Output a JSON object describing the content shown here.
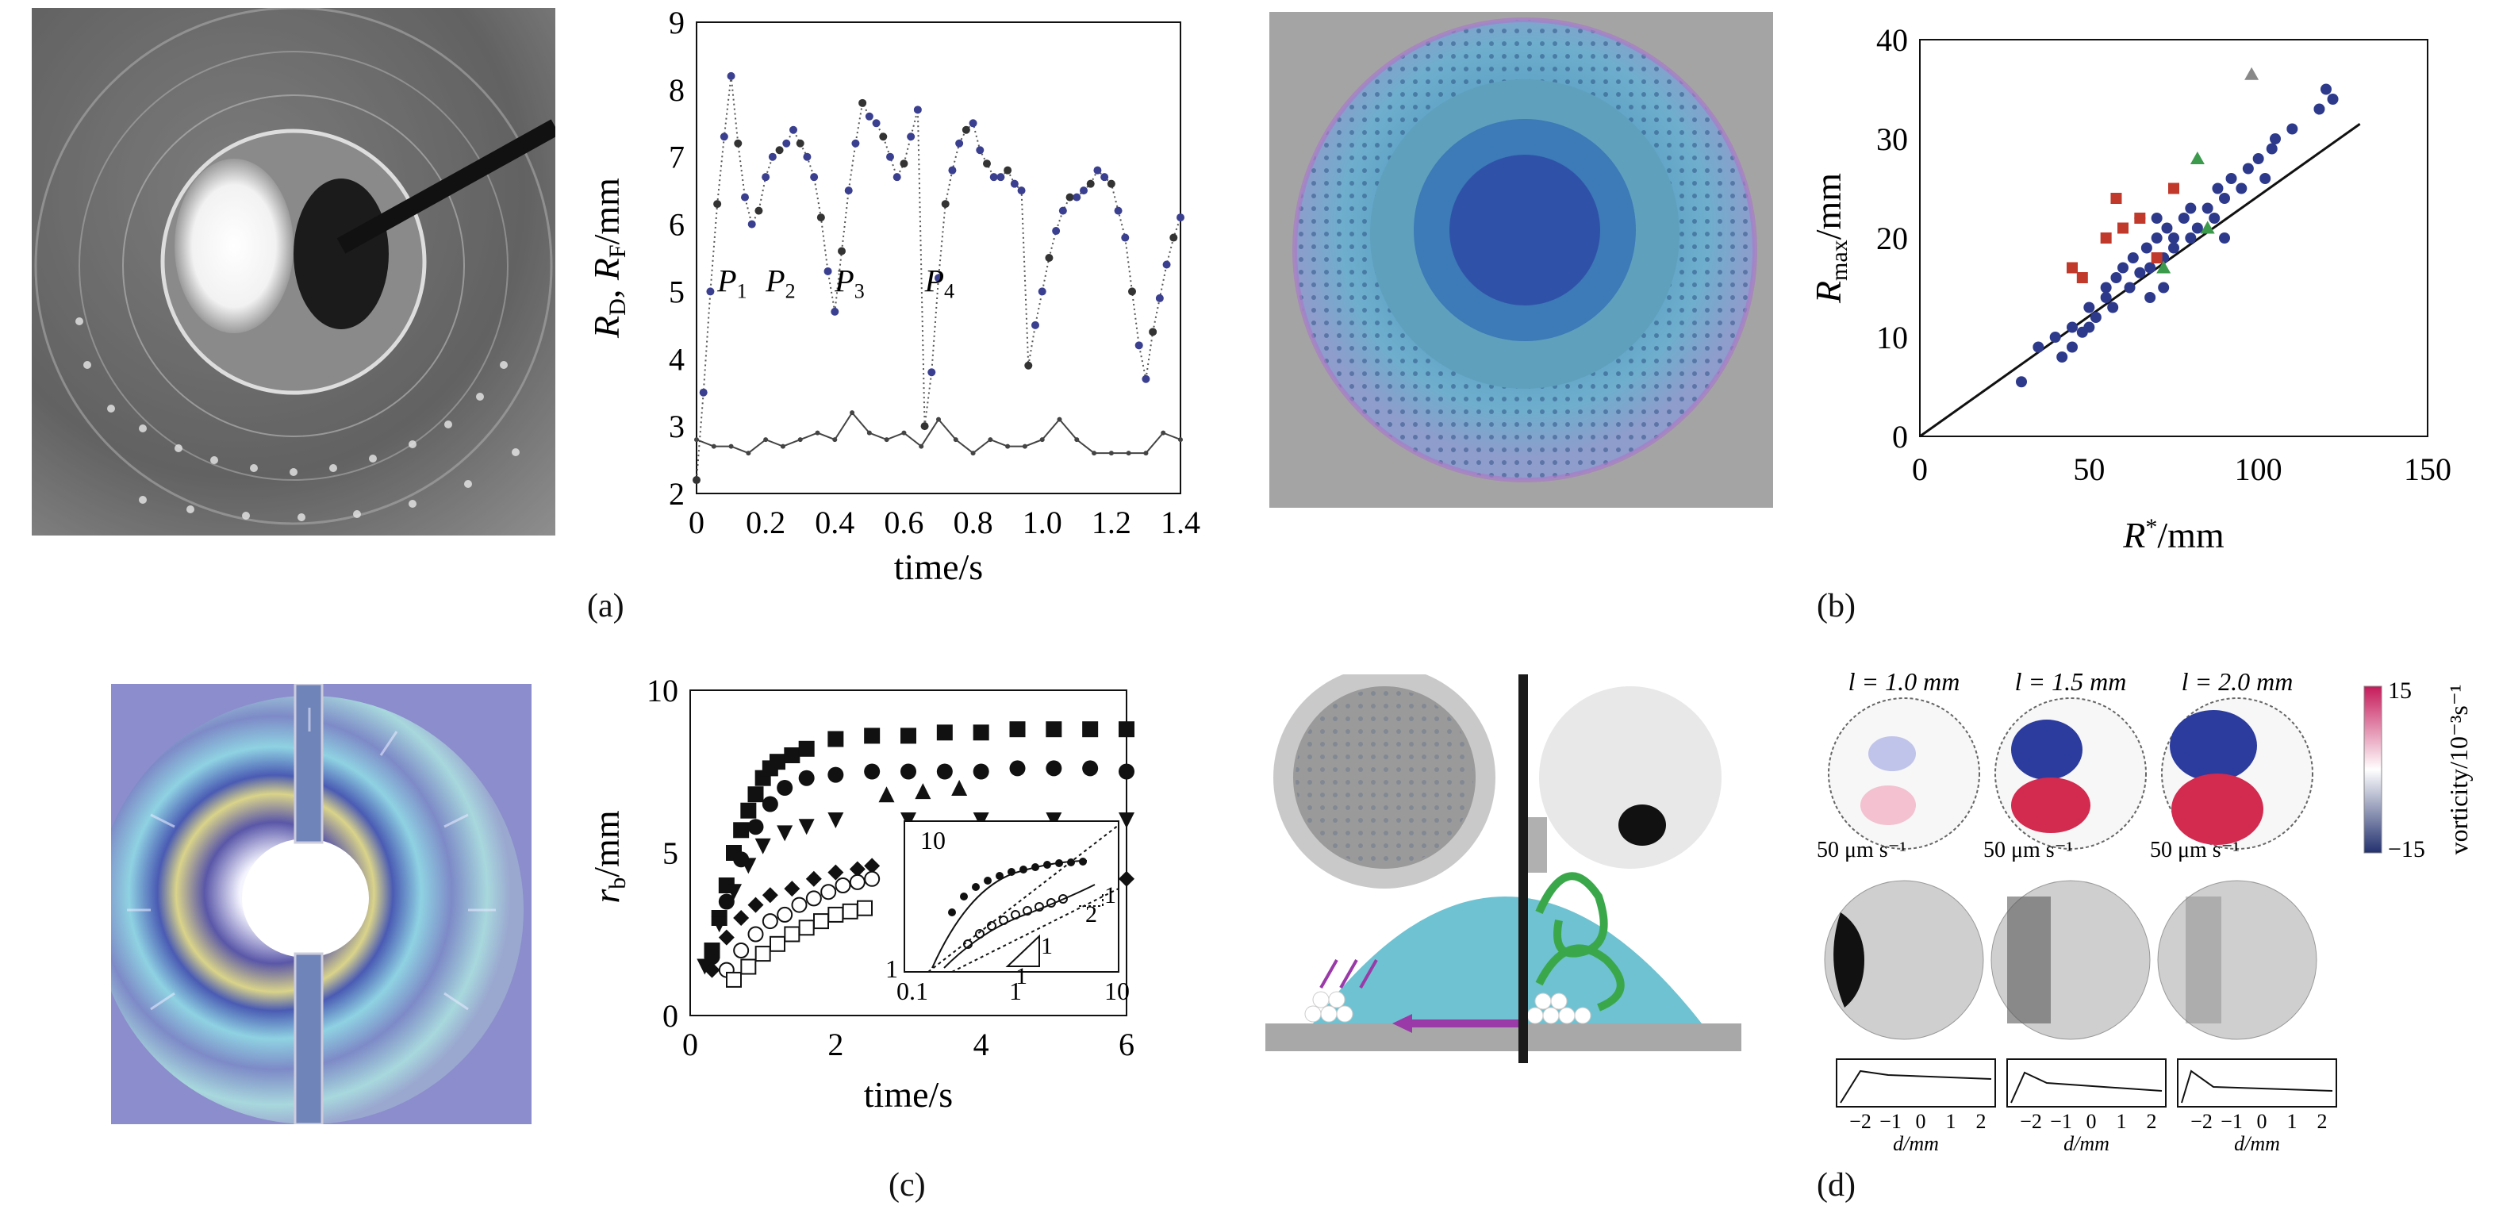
{
  "panel_labels": [
    "(a)",
    "(b)",
    "(c)",
    "(d)"
  ],
  "panel_a": {
    "ylabel": "R_D, R_F/mm",
    "xlabel": "time/s",
    "x_ticks": [
      "0",
      "0.2",
      "0.4",
      "0.6",
      "0.8",
      "1.0",
      "1.2",
      "1.4"
    ],
    "y_ticks": [
      "2",
      "3",
      "4",
      "5",
      "6",
      "7",
      "8",
      "9"
    ],
    "peak_labels": [
      {
        "main": "P",
        "sub": "1"
      },
      {
        "main": "P",
        "sub": "2"
      },
      {
        "main": "P",
        "sub": "3"
      },
      {
        "main": "P",
        "sub": "4"
      }
    ]
  },
  "panel_b": {
    "ylabel": "R_max/mm",
    "xlabel": "R*/mm",
    "x_ticks": [
      "0",
      "50",
      "100",
      "150"
    ],
    "y_ticks": [
      "0",
      "10",
      "20",
      "30",
      "40"
    ]
  },
  "panel_c": {
    "ylabel": "r_b/mm",
    "xlabel": "time/s",
    "x_ticks": [
      "0",
      "2",
      "4",
      "6"
    ],
    "y_ticks": [
      "0",
      "5",
      "10"
    ],
    "inset_x_ticks": [
      "0.1",
      "1",
      "10"
    ],
    "inset_y_ticks": [
      "1",
      "10"
    ],
    "slope_labels": [
      "1",
      "1",
      "1",
      "2"
    ]
  },
  "panel_d": {
    "lengths": [
      "l = 1.0 mm",
      "l = 1.5 mm",
      "l = 2.0 mm"
    ],
    "scale_text": "50 μm s⁻¹",
    "colorbar_top": "15",
    "colorbar_bottom": "−15",
    "colorbar_label": "vorticity/10⁻³s⁻¹",
    "profile_ticks": [
      "−2",
      "−1",
      "0",
      "1",
      "2"
    ],
    "profile_xlabel": "d/mm"
  },
  "chart_data": [
    {
      "type": "scatter",
      "title": "",
      "xlabel": "time/s",
      "ylabel": "R_D, R_F/mm",
      "xlim": [
        0,
        1.4
      ],
      "ylim": [
        2,
        9
      ],
      "series": [
        {
          "values": [
            [
              0.0,
              2.2
            ],
            [
              0.02,
              3.5
            ],
            [
              0.04,
              5.0
            ],
            [
              0.06,
              6.3
            ],
            [
              0.08,
              7.3
            ],
            [
              0.1,
              8.2
            ],
            [
              0.12,
              7.2
            ],
            [
              0.14,
              6.4
            ],
            [
              0.16,
              6.0
            ],
            [
              0.18,
              6.2
            ],
            [
              0.2,
              6.7
            ],
            [
              0.22,
              7.0
            ],
            [
              0.24,
              7.1
            ],
            [
              0.26,
              7.2
            ],
            [
              0.28,
              7.4
            ],
            [
              0.3,
              7.2
            ],
            [
              0.32,
              7.0
            ],
            [
              0.34,
              6.7
            ],
            [
              0.36,
              6.1
            ],
            [
              0.38,
              5.3
            ],
            [
              0.4,
              4.7
            ],
            [
              0.42,
              5.6
            ],
            [
              0.44,
              6.5
            ],
            [
              0.46,
              7.2
            ],
            [
              0.48,
              7.8
            ],
            [
              0.5,
              7.6
            ],
            [
              0.52,
              7.5
            ],
            [
              0.54,
              7.3
            ],
            [
              0.56,
              7.0
            ],
            [
              0.58,
              6.7
            ],
            [
              0.6,
              6.9
            ],
            [
              0.62,
              7.3
            ],
            [
              0.64,
              7.7
            ],
            [
              0.66,
              3.0
            ],
            [
              0.68,
              3.8
            ],
            [
              0.7,
              5.2
            ],
            [
              0.72,
              6.3
            ],
            [
              0.74,
              6.8
            ],
            [
              0.76,
              7.2
            ],
            [
              0.78,
              7.4
            ],
            [
              0.8,
              7.5
            ],
            [
              0.82,
              7.1
            ],
            [
              0.84,
              6.9
            ],
            [
              0.86,
              6.7
            ],
            [
              0.88,
              6.7
            ],
            [
              0.9,
              6.8
            ],
            [
              0.92,
              6.6
            ],
            [
              0.94,
              6.5
            ],
            [
              0.96,
              3.9
            ],
            [
              0.98,
              4.5
            ],
            [
              1.0,
              5.0
            ],
            [
              1.02,
              5.5
            ],
            [
              1.04,
              5.9
            ],
            [
              1.06,
              6.2
            ],
            [
              1.08,
              6.4
            ],
            [
              1.1,
              6.4
            ],
            [
              1.12,
              6.5
            ],
            [
              1.14,
              6.6
            ],
            [
              1.16,
              6.8
            ],
            [
              1.18,
              6.7
            ],
            [
              1.2,
              6.6
            ],
            [
              1.22,
              6.2
            ],
            [
              1.24,
              5.8
            ],
            [
              1.26,
              5.0
            ],
            [
              1.28,
              4.2
            ],
            [
              1.3,
              3.7
            ],
            [
              1.32,
              4.4
            ],
            [
              1.34,
              4.9
            ],
            [
              1.36,
              5.4
            ],
            [
              1.38,
              5.8
            ],
            [
              1.4,
              6.1
            ]
          ]
        },
        {
          "values": [
            [
              0.0,
              2.8
            ],
            [
              0.05,
              2.7
            ],
            [
              0.1,
              2.7
            ],
            [
              0.15,
              2.6
            ],
            [
              0.2,
              2.8
            ],
            [
              0.25,
              2.7
            ],
            [
              0.3,
              2.8
            ],
            [
              0.35,
              2.9
            ],
            [
              0.4,
              2.8
            ],
            [
              0.45,
              3.2
            ],
            [
              0.5,
              2.9
            ],
            [
              0.55,
              2.8
            ],
            [
              0.6,
              2.9
            ],
            [
              0.65,
              2.7
            ],
            [
              0.7,
              3.1
            ],
            [
              0.75,
              2.8
            ],
            [
              0.8,
              2.6
            ],
            [
              0.85,
              2.8
            ],
            [
              0.9,
              2.7
            ],
            [
              0.95,
              2.7
            ],
            [
              1.0,
              2.8
            ],
            [
              1.05,
              3.1
            ],
            [
              1.1,
              2.8
            ],
            [
              1.15,
              2.6
            ],
            [
              1.2,
              2.6
            ],
            [
              1.25,
              2.6
            ],
            [
              1.3,
              2.6
            ],
            [
              1.35,
              2.9
            ],
            [
              1.4,
              2.8
            ]
          ]
        }
      ]
    },
    {
      "type": "scatter",
      "title": "",
      "xlabel": "R*/mm",
      "ylabel": "R_max/mm",
      "xlim": [
        0,
        150
      ],
      "ylim": [
        0,
        40
      ],
      "fit_line": [
        [
          0,
          0
        ],
        [
          130,
          31.5
        ]
      ],
      "series": [
        {
          "marker": "circle",
          "color": "#2d3a8c",
          "values": [
            [
              30,
              5.5
            ],
            [
              40,
              10
            ],
            [
              42,
              8
            ],
            [
              45,
              11
            ],
            [
              48,
              10.5
            ],
            [
              50,
              13
            ],
            [
              52,
              12
            ],
            [
              55,
              14
            ],
            [
              57,
              13
            ],
            [
              58,
              16
            ],
            [
              60,
              17
            ],
            [
              62,
              15
            ],
            [
              63,
              18
            ],
            [
              65,
              16.5
            ],
            [
              67,
              19
            ],
            [
              68,
              17
            ],
            [
              70,
              20
            ],
            [
              72,
              18
            ],
            [
              73,
              21
            ],
            [
              75,
              19
            ],
            [
              78,
              22
            ],
            [
              80,
              20
            ],
            [
              82,
              21
            ],
            [
              85,
              23
            ],
            [
              87,
              22
            ],
            [
              88,
              25
            ],
            [
              90,
              24
            ],
            [
              92,
              26
            ],
            [
              95,
              25
            ],
            [
              97,
              27
            ],
            [
              100,
              28
            ],
            [
              102,
              26
            ],
            [
              104,
              29
            ],
            [
              105,
              30
            ],
            [
              110,
              31
            ],
            [
              118,
              33
            ],
            [
              120,
              35
            ],
            [
              122,
              34
            ],
            [
              60,
              21
            ],
            [
              65,
              22
            ],
            [
              70,
              22
            ],
            [
              75,
              20
            ],
            [
              80,
              23
            ],
            [
              90,
              20
            ],
            [
              55,
              15
            ],
            [
              68,
              14
            ],
            [
              72,
              15
            ],
            [
              50,
              11
            ],
            [
              45,
              9
            ],
            [
              35,
              9
            ]
          ]
        },
        {
          "marker": "square",
          "color": "#c0392b",
          "values": [
            [
              45,
              17
            ],
            [
              48,
              16
            ],
            [
              55,
              20
            ],
            [
              58,
              24
            ],
            [
              60,
              21
            ],
            [
              65,
              22
            ],
            [
              75,
              25
            ],
            [
              70,
              18
            ]
          ]
        },
        {
          "marker": "triangle",
          "color": "#3c9a4c",
          "values": [
            [
              82,
              28
            ],
            [
              72,
              17
            ],
            [
              85,
              21
            ]
          ]
        },
        {
          "marker": "triangle",
          "color": "#888888",
          "values": [
            [
              98,
              36.5
            ]
          ]
        }
      ]
    },
    {
      "type": "scatter",
      "title": "",
      "xlabel": "time/s",
      "ylabel": "r_b/mm",
      "xlim": [
        0,
        6
      ],
      "ylim": [
        0,
        10
      ],
      "series": [
        {
          "marker": "square-filled",
          "values": [
            [
              0.3,
              2
            ],
            [
              0.4,
              3
            ],
            [
              0.5,
              4
            ],
            [
              0.6,
              5
            ],
            [
              0.7,
              5.7
            ],
            [
              0.8,
              6.3
            ],
            [
              0.9,
              6.8
            ],
            [
              1.0,
              7.3
            ],
            [
              1.1,
              7.6
            ],
            [
              1.2,
              7.8
            ],
            [
              1.4,
              8.0
            ],
            [
              1.6,
              8.2
            ],
            [
              2.0,
              8.5
            ],
            [
              2.5,
              8.6
            ],
            [
              3.0,
              8.6
            ],
            [
              3.5,
              8.7
            ],
            [
              4.0,
              8.7
            ],
            [
              4.5,
              8.8
            ],
            [
              5.0,
              8.8
            ],
            [
              5.5,
              8.8
            ],
            [
              6.0,
              8.8
            ]
          ]
        },
        {
          "marker": "circle-filled",
          "values": [
            [
              0.3,
              1.8
            ],
            [
              0.5,
              3.5
            ],
            [
              0.7,
              4.8
            ],
            [
              0.9,
              5.8
            ],
            [
              1.1,
              6.5
            ],
            [
              1.3,
              7.0
            ],
            [
              1.6,
              7.3
            ],
            [
              2.0,
              7.4
            ],
            [
              2.5,
              7.5
            ],
            [
              3.0,
              7.5
            ],
            [
              3.5,
              7.5
            ],
            [
              4.0,
              7.5
            ],
            [
              4.5,
              7.6
            ],
            [
              5.0,
              7.6
            ],
            [
              5.5,
              7.6
            ],
            [
              6.0,
              7.5
            ]
          ]
        },
        {
          "marker": "triangle-up-filled",
          "values": [
            [
              2.7,
              6.8
            ],
            [
              3.2,
              6.9
            ],
            [
              3.7,
              7.0
            ]
          ]
        },
        {
          "marker": "triangle-down-filled",
          "values": [
            [
              0.2,
              1.5
            ],
            [
              0.4,
              2.8
            ],
            [
              0.6,
              3.8
            ],
            [
              0.8,
              4.6
            ],
            [
              1.0,
              5.2
            ],
            [
              1.3,
              5.6
            ],
            [
              1.6,
              5.8
            ],
            [
              2.0,
              6.0
            ],
            [
              3.0,
              6.0
            ],
            [
              4.0,
              6.0
            ],
            [
              5.0,
              6.0
            ],
            [
              6.0,
              6.0
            ]
          ]
        },
        {
          "marker": "diamond-filled",
          "values": [
            [
              0.3,
              1.4
            ],
            [
              0.5,
              2.4
            ],
            [
              0.7,
              3.0
            ],
            [
              0.9,
              3.4
            ],
            [
              1.1,
              3.7
            ],
            [
              1.4,
              3.9
            ],
            [
              1.7,
              4.2
            ],
            [
              2.0,
              4.4
            ],
            [
              2.3,
              4.5
            ],
            [
              2.5,
              4.6
            ],
            [
              6.0,
              4.2
            ]
          ]
        },
        {
          "marker": "circle-open",
          "values": [
            [
              0.5,
              1.4
            ],
            [
              0.7,
              2.0
            ],
            [
              0.9,
              2.5
            ],
            [
              1.1,
              2.9
            ],
            [
              1.3,
              3.1
            ],
            [
              1.5,
              3.4
            ],
            [
              1.7,
              3.6
            ],
            [
              1.9,
              3.8
            ],
            [
              2.1,
              4.0
            ],
            [
              2.3,
              4.1
            ],
            [
              2.5,
              4.2
            ]
          ]
        },
        {
          "marker": "square-open",
          "values": [
            [
              0.6,
              1.1
            ],
            [
              0.8,
              1.5
            ],
            [
              1.0,
              1.9
            ],
            [
              1.2,
              2.2
            ],
            [
              1.4,
              2.5
            ],
            [
              1.6,
              2.7
            ],
            [
              1.8,
              2.9
            ],
            [
              2.0,
              3.1
            ],
            [
              2.2,
              3.2
            ],
            [
              2.4,
              3.3
            ]
          ]
        }
      ]
    }
  ]
}
